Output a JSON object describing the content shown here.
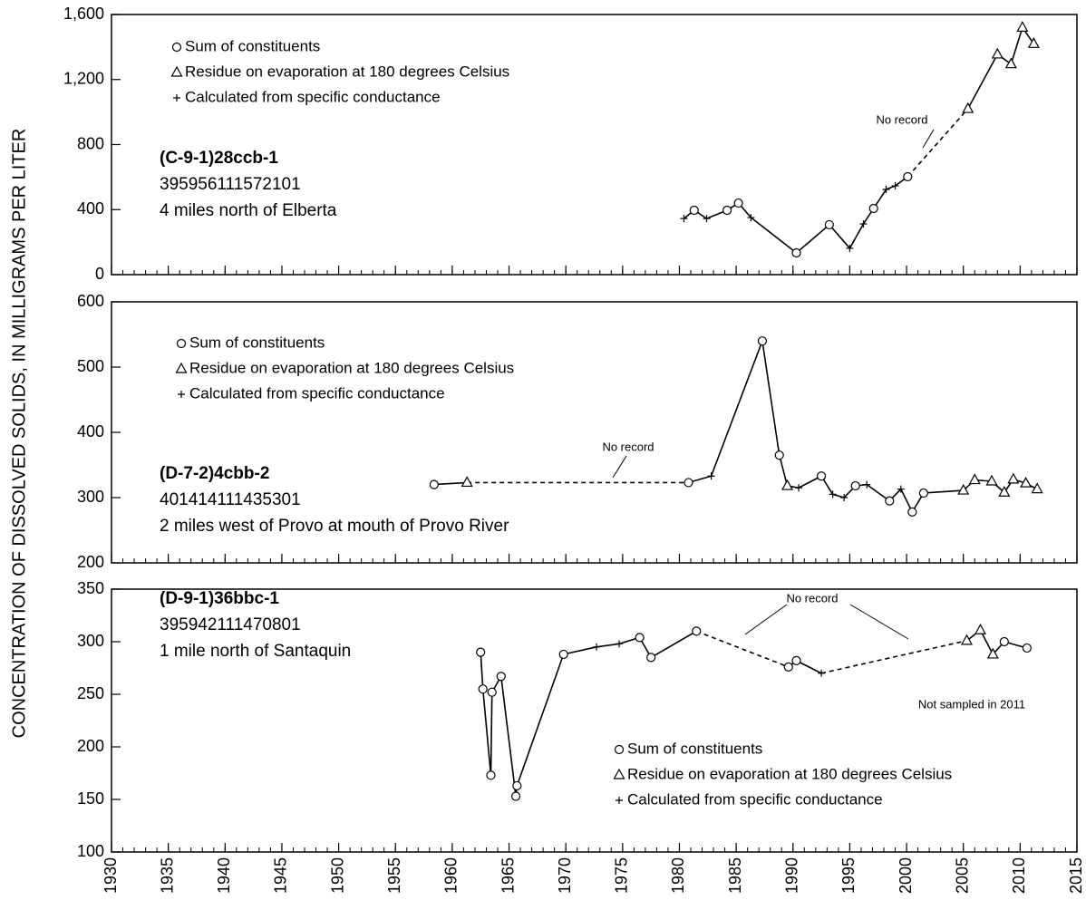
{
  "figure_ylabel": "CONCENTRATION OF DISSOLVED SOLIDS, IN MILLIGRAMS PER LITER",
  "chart_data": [
    {
      "type": "line",
      "station_id": "(C-9-1)28ccb-1",
      "station_number": "395956111572101",
      "location": "4 miles north of Elberta",
      "legend": [
        {
          "marker": "circle",
          "text": "Sum of constituents"
        },
        {
          "marker": "triangle",
          "text": "Residue on evaporation at 180 degrees Celsius"
        },
        {
          "marker": "plus",
          "text": "Calculated from specific conductance"
        }
      ],
      "x": [
        1980.4,
        1981.3,
        1982.4,
        1984.2,
        1985.2,
        1986.3,
        1990.3,
        1993.2,
        1995.0,
        1996.2,
        1997.1,
        1998.2,
        1999.0,
        2000.1,
        2005.4,
        2008.0,
        2009.2,
        2010.2,
        2011.2
      ],
      "values": [
        345,
        396,
        345,
        396,
        440,
        351,
        134,
        307,
        162,
        312,
        407,
        524,
        546,
        602,
        1020,
        1355,
        1295,
        1520,
        1420
      ],
      "markers": [
        "plus",
        "circle",
        "plus",
        "circle",
        "circle",
        "plus",
        "circle",
        "circle",
        "plus",
        "plus",
        "circle",
        "plus",
        "plus",
        "circle",
        "triangle",
        "triangle",
        "triangle",
        "triangle",
        "triangle"
      ],
      "dashed": [
        [
          2000.1,
          2005.4
        ]
      ],
      "annotations": [
        "No record"
      ],
      "xlim": [
        1930,
        2015
      ],
      "xticks": [
        1930,
        1935,
        1940,
        1945,
        1950,
        1955,
        1960,
        1965,
        1970,
        1975,
        1980,
        1985,
        1990,
        1995,
        2000,
        2005,
        2010,
        2015
      ],
      "ylim": [
        0,
        1600
      ],
      "yticks": [
        0,
        400,
        800,
        {
          "value": 1200,
          "label": "1,200"
        },
        {
          "value": 1600,
          "label": "1,600"
        }
      ]
    },
    {
      "type": "line",
      "station_id": "(D-7-2)4cbb-2",
      "station_number": "401414111435301",
      "location": "2 miles west of Provo at mouth of Provo River",
      "legend": [
        {
          "marker": "circle",
          "text": "Sum of constituents"
        },
        {
          "marker": "triangle",
          "text": "Residue on evaporation at 180 degrees Celsius"
        },
        {
          "marker": "plus",
          "text": "Calculated from specific conductance"
        }
      ],
      "x": [
        1958.4,
        1961.3,
        1980.8,
        1982.8,
        1987.3,
        1988.8,
        1989.5,
        1990.5,
        1992.5,
        1993.5,
        1994.5,
        1995.5,
        1996.5,
        1998.5,
        1999.5,
        2000.5,
        2001.5,
        2005.0,
        2006.0,
        2007.5,
        2008.6,
        2009.4,
        2010.5,
        2011.5
      ],
      "values": [
        320,
        323,
        323,
        333,
        540,
        365,
        318,
        315,
        333,
        305,
        300,
        318,
        320,
        295,
        313,
        278,
        307,
        311,
        327,
        325,
        308,
        328,
        322,
        313
      ],
      "markers": [
        "circle",
        "triangle",
        "circle",
        "plus",
        "circle",
        "circle",
        "triangle",
        "plus",
        "circle",
        "plus",
        "plus",
        "circle",
        "plus",
        "circle",
        "plus",
        "circle",
        "circle",
        "triangle",
        "triangle",
        "triangle",
        "triangle",
        "triangle",
        "triangle",
        "triangle"
      ],
      "dashed": [
        [
          1961.3,
          1980.8
        ]
      ],
      "annotations": [
        "No record"
      ],
      "xlim": [
        1930,
        2015
      ],
      "xticks": [
        1930,
        1935,
        1940,
        1945,
        1950,
        1955,
        1960,
        1965,
        1970,
        1975,
        1980,
        1985,
        1990,
        1995,
        2000,
        2005,
        2010,
        2015
      ],
      "ylim": [
        200,
        600
      ],
      "yticks": [
        200,
        300,
        400,
        500,
        600
      ]
    },
    {
      "type": "line",
      "station_id": "(D-9-1)36bbc-1",
      "station_number": "395942111470801",
      "location": "1 mile north of Santaquin",
      "legend": [
        {
          "marker": "circle",
          "text": "Sum of constituents"
        },
        {
          "marker": "triangle",
          "text": "Residue on evaporation at 180 degrees Celsius"
        },
        {
          "marker": "plus",
          "text": "Calculated from specific conductance"
        }
      ],
      "x": [
        1962.5,
        1962.7,
        1963.4,
        1963.5,
        1964.3,
        1965.6,
        1965.7,
        1969.8,
        1972.7,
        1974.7,
        1976.5,
        1977.5,
        1981.5,
        1989.6,
        1990.3,
        1992.5,
        2005.3,
        2006.5,
        2007.6,
        2008.6,
        2010.6
      ],
      "values": [
        290,
        255,
        173,
        252,
        267,
        153,
        163,
        288,
        295,
        298,
        304,
        285,
        310,
        276,
        282,
        270,
        301,
        311,
        288,
        300,
        294
      ],
      "markers": [
        "circle",
        "circle",
        "circle",
        "circle",
        "circle",
        "circle",
        "circle",
        "circle",
        "plus",
        "plus",
        "circle",
        "circle",
        "circle",
        "circle",
        "circle",
        "plus",
        "triangle",
        "triangle",
        "triangle",
        "circle",
        "circle"
      ],
      "dashed": [
        [
          1981.5,
          1989.6
        ],
        [
          1992.5,
          2005.3
        ]
      ],
      "annotations": [
        "No record",
        "Not sampled in 2011"
      ],
      "xlim": [
        1930,
        2015
      ],
      "xticks": [
        1930,
        1935,
        1940,
        1945,
        1950,
        1955,
        1960,
        1965,
        1970,
        1975,
        1980,
        1985,
        1990,
        1995,
        2000,
        2005,
        2010,
        2015
      ],
      "show_xtick_labels": true,
      "ylim": [
        100,
        350
      ],
      "yticks": [
        100,
        150,
        200,
        250,
        300,
        350
      ]
    }
  ]
}
